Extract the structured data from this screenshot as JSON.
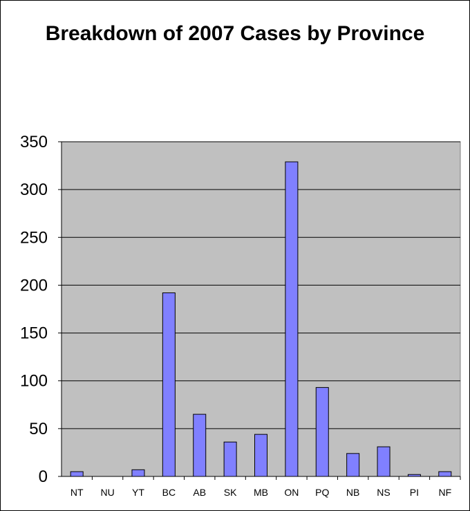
{
  "chart_data": {
    "type": "bar",
    "title": "Breakdown of 2007 Cases by Province",
    "categories": [
      "NT",
      "NU",
      "YT",
      "BC",
      "AB",
      "SK",
      "MB",
      "ON",
      "PQ",
      "NB",
      "NS",
      "PI",
      "NF"
    ],
    "values": [
      5,
      0,
      7,
      192,
      65,
      36,
      44,
      329,
      93,
      24,
      31,
      2,
      5
    ],
    "xlabel": "",
    "ylabel": "",
    "ylim": [
      0,
      350
    ],
    "yticks": [
      0,
      50,
      100,
      150,
      200,
      250,
      300,
      350
    ],
    "grid": true,
    "legend": "none",
    "colors": {
      "plot_background": "#c0c0c0",
      "bar_fill": "#8080ff",
      "bar_stroke": "#000000",
      "gridline": "#000000"
    }
  }
}
